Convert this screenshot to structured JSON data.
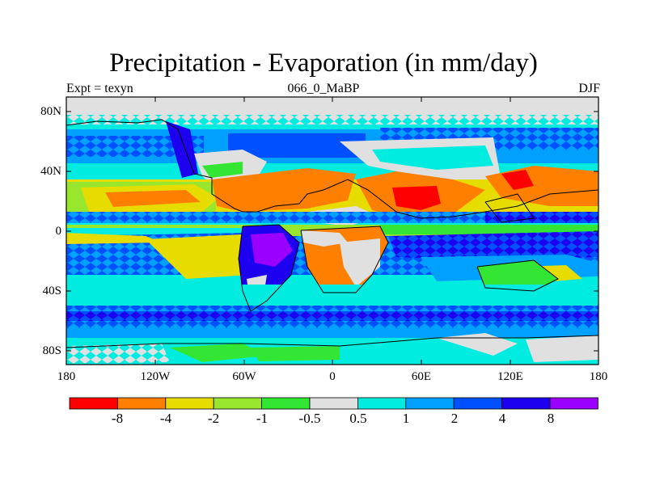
{
  "title": "Precipitation - Evaporation (in mm/day)",
  "subtitle_left": "Expt = texyn",
  "subtitle_center": "066_0_MaBP",
  "subtitle_right": "DJF",
  "lat_ticks": [
    "80N",
    "40N",
    "0",
    "40S",
    "80S"
  ],
  "lon_ticks": [
    "180",
    "120W",
    "60W",
    "0",
    "60E",
    "120E",
    "180"
  ],
  "colorbar": {
    "colors": [
      "#ff0000",
      "#ff8000",
      "#e6dc00",
      "#99e62e",
      "#33e633",
      "#e0e0e0",
      "#00ece0",
      "#00a0ff",
      "#0050ff",
      "#1e00f0",
      "#9a00ff"
    ],
    "labels": [
      "-8",
      "-4",
      "-2",
      "-1",
      "-0.5",
      "0.5",
      "1",
      "2",
      "4",
      "8"
    ]
  }
}
